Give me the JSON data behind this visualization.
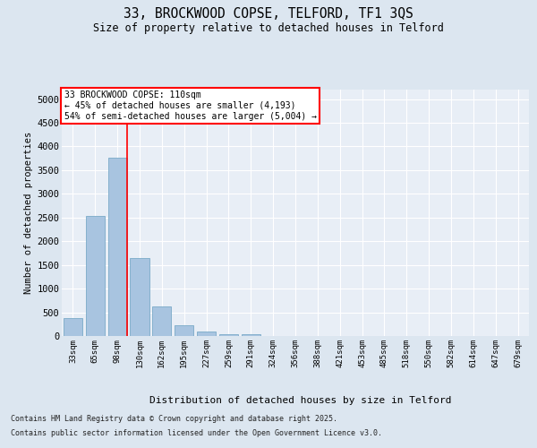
{
  "title_line1": "33, BROCKWOOD COPSE, TELFORD, TF1 3QS",
  "title_line2": "Size of property relative to detached houses in Telford",
  "xlabel": "Distribution of detached houses by size in Telford",
  "ylabel": "Number of detached properties",
  "categories": [
    "33sqm",
    "65sqm",
    "98sqm",
    "130sqm",
    "162sqm",
    "195sqm",
    "227sqm",
    "259sqm",
    "291sqm",
    "324sqm",
    "356sqm",
    "388sqm",
    "421sqm",
    "453sqm",
    "485sqm",
    "518sqm",
    "550sqm",
    "582sqm",
    "614sqm",
    "647sqm",
    "679sqm"
  ],
  "values": [
    375,
    2540,
    3760,
    1650,
    620,
    235,
    95,
    45,
    30,
    0,
    0,
    0,
    0,
    0,
    0,
    0,
    0,
    0,
    0,
    0,
    0
  ],
  "bar_color": "#a8c4e0",
  "bar_edge_color": "#7aaac8",
  "red_line_x": 2,
  "annotation_text_line1": "33 BROCKWOOD COPSE: 110sqm",
  "annotation_text_line2": "← 45% of detached houses are smaller (4,193)",
  "annotation_text_line3": "54% of semi-detached houses are larger (5,004) →",
  "ylim": [
    0,
    5200
  ],
  "yticks": [
    0,
    500,
    1000,
    1500,
    2000,
    2500,
    3000,
    3500,
    4000,
    4500,
    5000
  ],
  "background_color": "#dce6f0",
  "plot_bg_color": "#e8eef6",
  "footer_line1": "Contains HM Land Registry data © Crown copyright and database right 2025.",
  "footer_line2": "Contains public sector information licensed under the Open Government Licence v3.0."
}
